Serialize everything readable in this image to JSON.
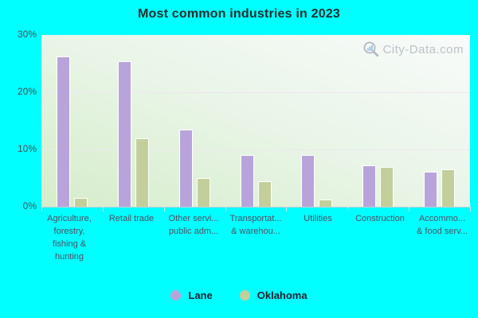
{
  "title": "Most common industries in 2023",
  "watermark": {
    "text": "City-Data.com",
    "icon": "magnifier-chart-icon"
  },
  "colors": {
    "background": "#00ffff",
    "lane_bar": "#b8a4da",
    "oklahoma_bar": "#c2cf9b",
    "bar_border": "#ffffff",
    "plot_gradient_start": "#f8fbfa",
    "plot_gradient_end": "#d5edca",
    "title_text": "#222e2e",
    "axis_text": "#4f4f63",
    "watermark_text": "#b4bcc3"
  },
  "chart_data": {
    "type": "bar",
    "title": "Most common industries in 2023",
    "xlabel": "",
    "ylabel": "",
    "ylim": [
      0,
      30
    ],
    "ytick_labels": [
      "30%",
      "20%",
      "10%",
      "0%"
    ],
    "grid": "horizontal",
    "legend_position": "bottom",
    "categories": [
      "Agriculture, forestry, fishing & hunting",
      "Retail trade",
      "Other servi... public adm...",
      "Transportat... & warehou...",
      "Utilities",
      "Construction",
      "Accommo... & food serv..."
    ],
    "categories_display": [
      [
        "Agriculture,",
        "forestry,",
        "fishing &",
        "hunting"
      ],
      [
        "Retail trade"
      ],
      [
        "Other servi...",
        "public adm..."
      ],
      [
        "Transportat...",
        "& warehou..."
      ],
      [
        "Utilities"
      ],
      [
        "Construction"
      ],
      [
        "Accommo...",
        "& food serv..."
      ]
    ],
    "series": [
      {
        "name": "Lane",
        "color": "#b8a4da",
        "values": [
          26.3,
          25.4,
          13.5,
          9.0,
          9.0,
          7.2,
          6.1
        ]
      },
      {
        "name": "Oklahoma",
        "color": "#c2cf9b",
        "values": [
          1.5,
          12.0,
          5.0,
          4.5,
          1.2,
          7.0,
          6.5
        ]
      }
    ]
  },
  "legend": {
    "items": [
      {
        "label": "Lane"
      },
      {
        "label": "Oklahoma"
      }
    ]
  }
}
